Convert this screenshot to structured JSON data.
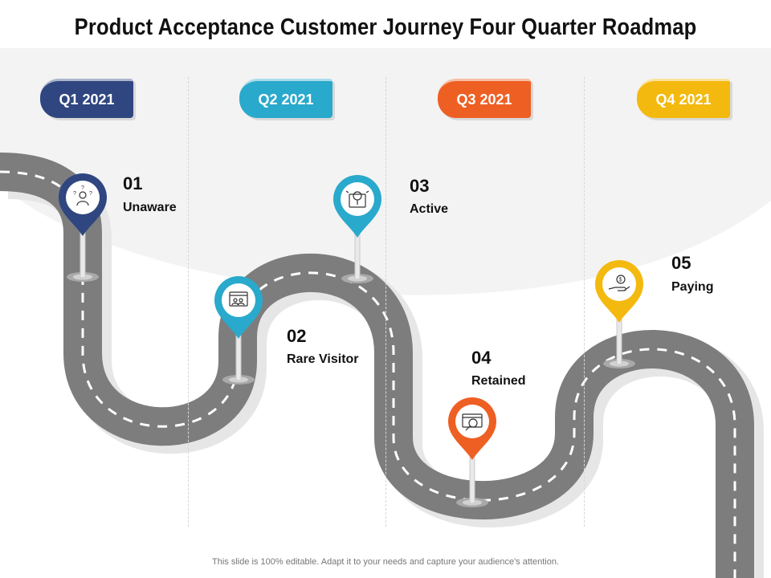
{
  "title": "Product Acceptance Customer Journey Four Quarter Roadmap",
  "quarters": [
    {
      "label": "Q1 2021",
      "color": "#2f4680"
    },
    {
      "label": "Q2 2021",
      "color": "#29a9cc"
    },
    {
      "label": "Q3 2021",
      "color": "#ee5f23"
    },
    {
      "label": "Q4 2021",
      "color": "#f4b90e"
    }
  ],
  "stages": [
    {
      "number": "01",
      "label": "Unaware",
      "icon": "confused-person-icon",
      "color": "#2f4680"
    },
    {
      "number": "02",
      "label": "Rare Visitor",
      "icon": "browser-visitors-icon",
      "color": "#29a9cc"
    },
    {
      "number": "03",
      "label": "Active",
      "icon": "idea-tablet-icon",
      "color": "#29a9cc"
    },
    {
      "number": "04",
      "label": "Retained",
      "icon": "browser-search-icon",
      "color": "#ee5f23"
    },
    {
      "number": "05",
      "label": "Paying",
      "icon": "hand-coin-icon",
      "color": "#f4b90e"
    }
  ],
  "colors": {
    "road": "#7d7d7d",
    "road_shadow": "#e6e6e6",
    "background_arc": "#f3f3f3",
    "lane_marks": "#ffffff"
  },
  "footer": "This slide is 100% editable. Adapt it to your needs and capture your audience's attention."
}
